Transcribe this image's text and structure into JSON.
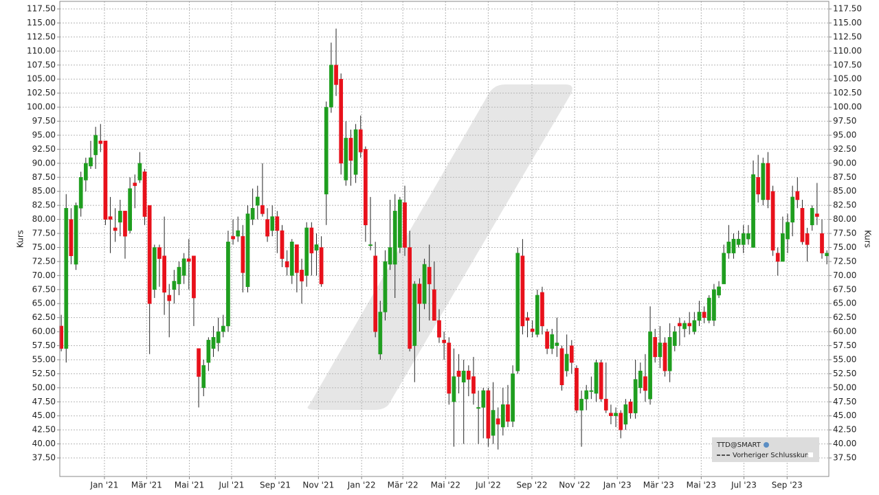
{
  "chart_data": {
    "type": "candlestick",
    "y_label": "Kurs",
    "ylim": [
      34.2,
      118.85
    ],
    "yticks": [
      {
        "value": 37.5,
        "label": "37.50"
      },
      {
        "value": 40,
        "label": "40.00"
      },
      {
        "value": 42.5,
        "label": "42.50"
      },
      {
        "value": 45,
        "label": "45.00"
      },
      {
        "value": 47.5,
        "label": "47.50"
      },
      {
        "value": 50,
        "label": "50.00"
      },
      {
        "value": 52.5,
        "label": "52.50"
      },
      {
        "value": 55,
        "label": "55.00"
      },
      {
        "value": 57.5,
        "label": "57.50"
      },
      {
        "value": 60,
        "label": "60.00"
      },
      {
        "value": 62.5,
        "label": "62.50"
      },
      {
        "value": 65,
        "label": "65.00"
      },
      {
        "value": 67.5,
        "label": "67.50"
      },
      {
        "value": 70,
        "label": "70.00"
      },
      {
        "value": 72.5,
        "label": "72.50"
      },
      {
        "value": 75,
        "label": "75.00"
      },
      {
        "value": 77.5,
        "label": "77.50"
      },
      {
        "value": 80,
        "label": "80.00"
      },
      {
        "value": 82.5,
        "label": "82.50"
      },
      {
        "value": 85,
        "label": "85.00"
      },
      {
        "value": 87.5,
        "label": "87.50"
      },
      {
        "value": 90,
        "label": "90.00"
      },
      {
        "value": 92.5,
        "label": "92.50"
      },
      {
        "value": 95,
        "label": "95.00"
      },
      {
        "value": 97.5,
        "label": "97.50"
      },
      {
        "value": 100,
        "label": "100.00"
      },
      {
        "value": 102.5,
        "label": "102.50"
      },
      {
        "value": 105,
        "label": "105.00"
      },
      {
        "value": 107.5,
        "label": "107.50"
      },
      {
        "value": 110,
        "label": "110.00"
      },
      {
        "value": 112.5,
        "label": "112.50"
      },
      {
        "value": 115,
        "label": "115.00"
      },
      {
        "value": 117.5,
        "label": "117.50"
      }
    ],
    "xlim": [
      -0.3,
      156.4
    ],
    "xticks": [
      {
        "value": 8.8,
        "label": "Jan '21"
      },
      {
        "value": 17.4,
        "label": "Mär '21"
      },
      {
        "value": 26.1,
        "label": "Mai '21"
      },
      {
        "value": 34.7,
        "label": "Jul '21"
      },
      {
        "value": 43.6,
        "label": "Sep '21"
      },
      {
        "value": 52.4,
        "label": "Nov '21"
      },
      {
        "value": 61.2,
        "label": "Jan '22"
      },
      {
        "value": 69.6,
        "label": "Mär '22"
      },
      {
        "value": 78.3,
        "label": "Mai '22"
      },
      {
        "value": 87.0,
        "label": "Jul '22"
      },
      {
        "value": 95.9,
        "label": "Sep '22"
      },
      {
        "value": 104.6,
        "label": "Nov '22"
      },
      {
        "value": 113.3,
        "label": "Jan '23"
      },
      {
        "value": 121.7,
        "label": "Mär '23"
      },
      {
        "value": 130.4,
        "label": "Mai '23"
      },
      {
        "value": 139.1,
        "label": "Jul '23"
      },
      {
        "value": 147.9,
        "label": "Sep '23"
      }
    ],
    "grid": true,
    "up_color": "#1f9e1f",
    "down_color": "#e8111b",
    "legend": [
      "TTD@SMART",
      "Vorheriger Schlusskurs"
    ],
    "series": [
      {
        "name": "TTD@SMART",
        "open": [
          61,
          57,
          80,
          72,
          82,
          87,
          89.5,
          91.5,
          94,
          94,
          80.5,
          78.5,
          79.5,
          81.5,
          78,
          86.5,
          87,
          88.5,
          82.5,
          67.5,
          75,
          73.5,
          66.5,
          67.5,
          68.5,
          70,
          73,
          73.5,
          57,
          50,
          54.5,
          57,
          58,
          60,
          61,
          77,
          77,
          77,
          68,
          80,
          82.5,
          82.5,
          80,
          78,
          80.5,
          78,
          72.5,
          70,
          75.5,
          71,
          70,
          78.5,
          74.5,
          75,
          84.5,
          100,
          107.5,
          105,
          87,
          94.5,
          88,
          96,
          92.5,
          75.5,
          73.5,
          56,
          63.5,
          72,
          72,
          75,
          83,
          75,
          57.5,
          68.5,
          65,
          71.5,
          67.5,
          62,
          58.5,
          58,
          47.5,
          53,
          51,
          53,
          52,
          46.5,
          46.5,
          49.5,
          41.5,
          44.5,
          43,
          47,
          44,
          53,
          73.5,
          62.5,
          60.5,
          59.5,
          67,
          60,
          57,
          57.5,
          57,
          53,
          57.5,
          53.5,
          46,
          48,
          49.5,
          49,
          54.5,
          48,
          45.5,
          45,
          45.5,
          43.5,
          47.5,
          45.5,
          50,
          52,
          48,
          59,
          55.5,
          58,
          53,
          57.5,
          61.5,
          60.5,
          61.5,
          60,
          62,
          63.5,
          62,
          62,
          66.5,
          68.5,
          74,
          74,
          75.5,
          75.5,
          76.5,
          75,
          87.5,
          83.5,
          90,
          85,
          74,
          72.5,
          76.5,
          79.5,
          85,
          82,
          77.5,
          79,
          81,
          77.5,
          73.5
        ],
        "high": [
          63,
          84.5,
          82,
          83,
          88.5,
          91,
          94,
          96.5,
          97,
          94,
          84,
          82,
          83.5,
          81.5,
          87.5,
          88,
          92,
          89,
          82.5,
          75.5,
          75.5,
          80.5,
          68.5,
          71,
          72.5,
          74,
          76.5,
          73.5,
          57,
          55,
          59,
          61,
          62.5,
          63,
          78,
          80,
          80.5,
          79,
          82.5,
          85.5,
          86,
          90,
          82,
          82.5,
          81.5,
          79,
          74.5,
          76.5,
          75.5,
          73,
          79.5,
          79.5,
          77.5,
          77,
          101,
          111.5,
          114,
          106,
          97.5,
          96,
          97,
          98.5,
          93,
          84,
          76,
          65.5,
          74.5,
          83.5,
          84.5,
          84,
          86,
          78,
          69,
          69.5,
          73,
          75.5,
          72.5,
          64,
          60,
          59,
          57,
          56,
          55,
          54,
          55.5,
          49.5,
          50,
          50,
          51,
          46.5,
          50,
          50.5,
          54,
          75,
          76.5,
          63.5,
          62,
          67.5,
          68,
          60.5,
          60.5,
          62.5,
          57.5,
          59.5,
          58.5,
          54,
          49.5,
          50.5,
          52,
          55,
          55,
          54.5,
          47,
          46.5,
          46,
          48,
          48,
          55,
          54.5,
          56,
          64.5,
          60.5,
          61,
          59,
          61.5,
          61,
          62.5,
          62,
          63.5,
          63.5,
          65.5,
          64.5,
          66.5,
          68.5,
          69,
          75.5,
          79,
          77.5,
          78,
          79,
          79,
          90.5,
          91.5,
          91,
          92,
          86,
          75,
          80.5,
          81,
          86,
          87.5,
          83.5,
          78.5,
          82.5,
          86.5,
          80,
          74.5
        ],
        "low": [
          56.5,
          54.5,
          72,
          71,
          80.5,
          85,
          89,
          89,
          92,
          79,
          74,
          76,
          77,
          73,
          77.5,
          82,
          86.5,
          79,
          56,
          66,
          68,
          63,
          59,
          65,
          66.5,
          68.5,
          67.5,
          61,
          46.5,
          48.5,
          53,
          55.5,
          56.5,
          59,
          60,
          75.5,
          76,
          67,
          67,
          79,
          80,
          80.5,
          76,
          77,
          74,
          71.5,
          70,
          68.5,
          67,
          65,
          68,
          70,
          70,
          68,
          79,
          99,
          102,
          88,
          86,
          86,
          86.5,
          91,
          76,
          74.5,
          59,
          55,
          62,
          71,
          66,
          74,
          73.5,
          56.5,
          51,
          60,
          64,
          62,
          62,
          58,
          55,
          47,
          39.5,
          49,
          40,
          48.5,
          47,
          40,
          41,
          39.5,
          40,
          39,
          41.5,
          43,
          43,
          52.5,
          59.5,
          59,
          59,
          59,
          59.5,
          56,
          56,
          55.5,
          49.5,
          52,
          52.5,
          45.5,
          39.5,
          46,
          48,
          47.5,
          47.5,
          45.5,
          43.5,
          43,
          41,
          42.5,
          44.5,
          44.5,
          49,
          47.5,
          47,
          54.5,
          53.5,
          52,
          51,
          56.5,
          57.5,
          59,
          59.5,
          59.5,
          61,
          61.5,
          61.5,
          61,
          66,
          69,
          73,
          73,
          75,
          74,
          75.5,
          75,
          83,
          82.5,
          82,
          73.5,
          70,
          72.5,
          74,
          77,
          82,
          75.5,
          72.5,
          78,
          79,
          73,
          72
        ],
        "close": [
          57,
          82,
          73.5,
          82.5,
          87.5,
          90,
          91,
          95,
          93.5,
          80,
          80,
          78,
          81.5,
          77,
          85.5,
          86,
          90,
          80.5,
          65,
          75,
          73,
          67,
          65.5,
          69,
          71.5,
          73,
          72.5,
          66,
          52,
          54,
          58.5,
          59,
          60,
          61,
          76,
          76.5,
          78,
          70.5,
          81,
          82,
          84,
          81,
          77,
          80.5,
          78,
          73,
          71.5,
          76,
          70.5,
          69,
          78.5,
          74,
          75.5,
          68.5,
          100,
          107.5,
          104,
          90,
          94.5,
          90.5,
          96,
          92,
          79,
          75.5,
          60,
          63.5,
          72.5,
          75,
          81.5,
          83.5,
          75,
          57,
          68.5,
          65,
          72,
          68.5,
          62,
          59,
          58,
          49,
          52,
          52,
          53,
          51.5,
          49,
          46.5,
          49.5,
          41,
          46,
          43.5,
          47,
          44,
          52.5,
          74,
          61,
          62,
          60,
          66.5,
          61,
          57,
          59.5,
          58,
          50.5,
          56,
          54.5,
          46,
          48,
          49.5,
          49.5,
          54.5,
          48,
          46,
          45,
          45.5,
          42.5,
          47,
          45.5,
          51.5,
          53,
          49.5,
          60,
          55.5,
          58,
          53,
          59,
          60,
          61,
          61.5,
          61,
          62,
          63.5,
          62.5,
          66,
          67.5,
          68,
          74,
          76,
          76.5,
          76.5,
          77.5,
          77.5,
          88,
          84.5,
          90,
          83.5,
          74.5,
          72.5,
          77.5,
          79.5,
          84,
          83.5,
          76,
          75.5,
          82,
          80.5,
          74,
          74
        ]
      }
    ]
  }
}
